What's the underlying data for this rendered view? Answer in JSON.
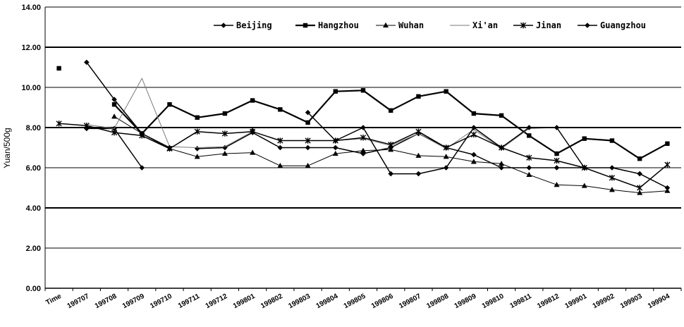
{
  "chart_data": {
    "type": "line",
    "title": "",
    "xlabel": "",
    "ylabel": "Yuan/500g",
    "ylim": [
      0,
      14
    ],
    "yticks": [
      "0.00",
      "2.00",
      "4.00",
      "6.00",
      "8.00",
      "10.00",
      "12.00",
      "14.00"
    ],
    "categories": [
      "Time",
      "199707",
      "199708",
      "199709",
      "199710",
      "199711",
      "199712",
      "199801",
      "199802",
      "199803",
      "199804",
      "199805",
      "199806",
      "199807",
      "199808",
      "199809",
      "199810",
      "199811",
      "199812",
      "199901",
      "199902",
      "199903",
      "199904"
    ],
    "grid": true,
    "legend_position": "top",
    "series": [
      {
        "name": "Beijing",
        "marker": "diamond",
        "color": "#000000",
        "stroke_width": 1.5,
        "values": [
          null,
          7.95,
          7.95,
          6.0,
          null,
          6.95,
          7.0,
          7.75,
          7.0,
          7.0,
          7.0,
          6.7,
          7.0,
          7.7,
          7.0,
          6.65,
          6.0,
          6.0,
          6.0,
          6.0,
          6.0,
          5.7,
          5.0
        ]
      },
      {
        "name": "Hangzhou",
        "marker": "square",
        "color": "#000000",
        "stroke_width": 2.2,
        "values": [
          10.95,
          null,
          9.15,
          7.7,
          9.15,
          8.5,
          8.7,
          9.35,
          8.9,
          8.25,
          9.8,
          9.85,
          8.85,
          9.55,
          9.8,
          8.7,
          8.6,
          7.6,
          6.7,
          7.45,
          7.35,
          6.45,
          7.2
        ]
      },
      {
        "name": "Wuhan",
        "marker": "triangle",
        "color": "#000000",
        "stroke_width": 1.0,
        "values": [
          null,
          null,
          8.55,
          7.7,
          6.95,
          6.55,
          6.7,
          6.75,
          6.1,
          6.1,
          6.7,
          6.85,
          6.9,
          6.6,
          6.55,
          6.3,
          6.2,
          5.65,
          5.15,
          5.1,
          4.9,
          4.75,
          4.85
        ]
      },
      {
        "name": "Xi'an",
        "marker": "none",
        "color": "#7a7a7a",
        "stroke_width": 1.0,
        "values": [
          null,
          8.15,
          7.95,
          10.45,
          7.05,
          7.0,
          7.05,
          7.8,
          7.35,
          7.35,
          7.35,
          7.45,
          7.1,
          7.7,
          6.95,
          7.9,
          6.95,
          7.95,
          8.0,
          6.0,
          null,
          null,
          null
        ]
      },
      {
        "name": "Jinan",
        "marker": "star",
        "color": "#000000",
        "stroke_width": 1.5,
        "values": [
          8.2,
          8.1,
          7.75,
          7.6,
          6.95,
          7.8,
          7.7,
          7.8,
          7.35,
          7.35,
          7.35,
          7.5,
          7.15,
          7.8,
          7.0,
          7.65,
          7.0,
          6.5,
          6.35,
          6.0,
          5.5,
          5.0,
          6.15
        ]
      },
      {
        "name": "Guangzhou",
        "marker": "diamond",
        "color": "#000000",
        "stroke_width": 1.5,
        "values": [
          null,
          11.25,
          9.4,
          7.7,
          7.0,
          null,
          null,
          7.85,
          null,
          8.75,
          7.35,
          8.0,
          5.7,
          5.7,
          6.0,
          8.0,
          7.0,
          8.0,
          8.0,
          6.0,
          null,
          null,
          null
        ]
      }
    ]
  }
}
